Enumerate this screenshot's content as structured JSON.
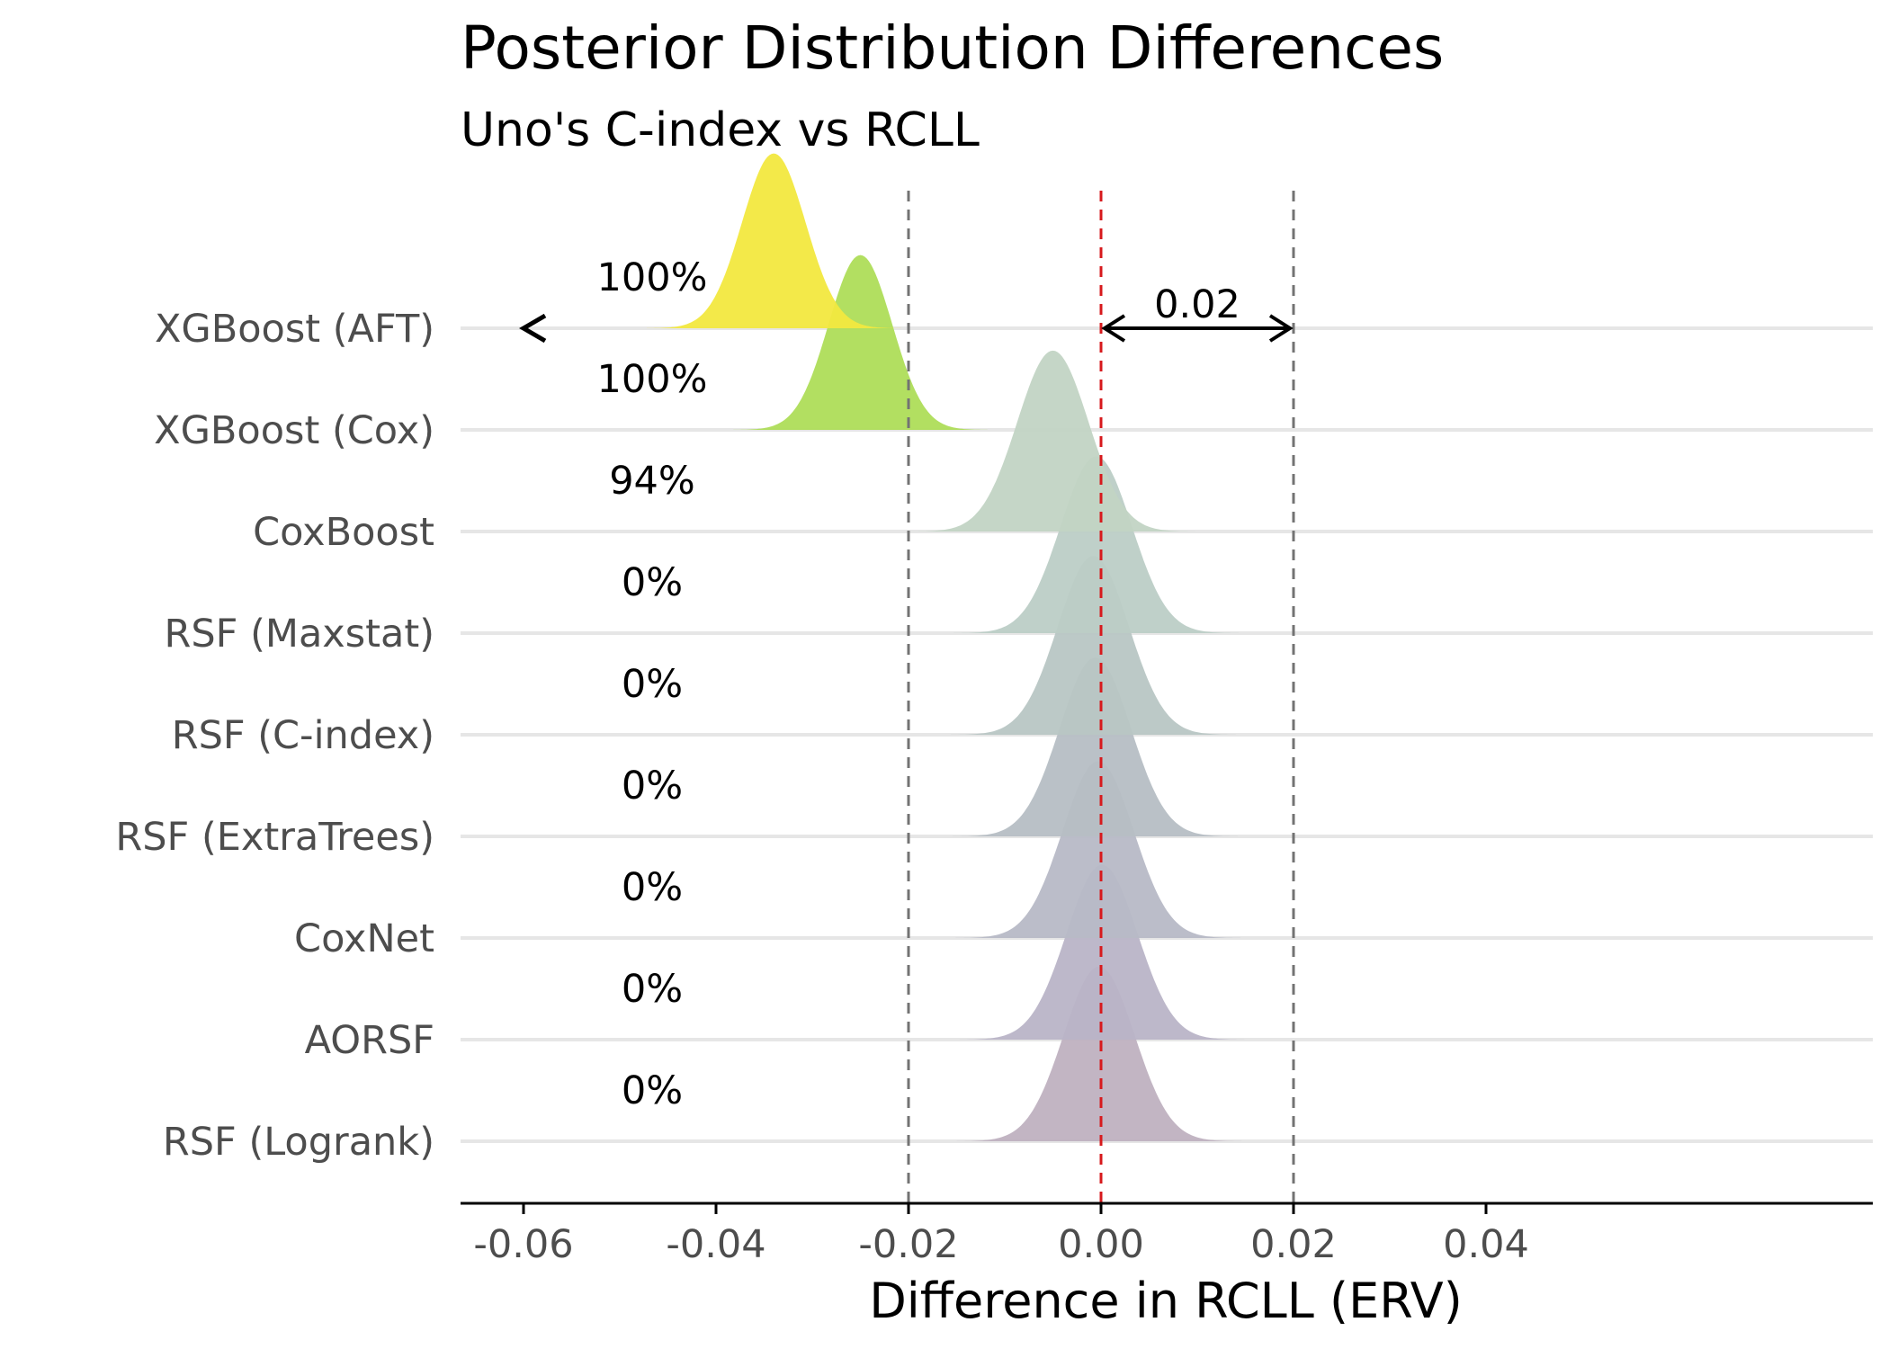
{
  "chart_data": {
    "type": "ridgeline",
    "title": "Posterior Distribution Differences",
    "subtitle": "Uno's C-index vs RCLL",
    "xlabel": "Difference in RCLL (ERV)",
    "xlim": [
      -0.065,
      0.045
    ],
    "xticks": [
      -0.06,
      -0.04,
      -0.02,
      0.0,
      0.02,
      0.04
    ],
    "xtick_labels": [
      "-0.06",
      "-0.04",
      "-0.02",
      "0.00",
      "0.02",
      "0.04"
    ],
    "rope": [
      -0.02,
      0.02
    ],
    "reference_line": 0.0,
    "rope_width_annotation": "0.02",
    "arrow_left_marker": "<",
    "categories": [
      {
        "name": "XGBoost (AFT)",
        "percent": "100%",
        "mode": -0.034,
        "sd": 0.0033,
        "peak": 1.72,
        "color": "#f2e83f"
      },
      {
        "name": "XGBoost (Cox)",
        "percent": "100%",
        "mode": -0.025,
        "sd": 0.0033,
        "peak": 1.72,
        "color": "#aedd58"
      },
      {
        "name": "CoxBoost",
        "percent": "94%",
        "mode": -0.005,
        "sd": 0.0037,
        "peak": 1.78,
        "color": "#c2d4c4"
      },
      {
        "name": "RSF (Maxstat)",
        "percent": "0%",
        "mode": -0.0005,
        "sd": 0.0037,
        "peak": 1.74,
        "color": "#bccdc6"
      },
      {
        "name": "RSF (C-index)",
        "percent": "0%",
        "mode": -0.0008,
        "sd": 0.0037,
        "peak": 1.76,
        "color": "#b8c6c4"
      },
      {
        "name": "RSF (ExtraTrees)",
        "percent": "0%",
        "mode": -0.0006,
        "sd": 0.0037,
        "peak": 1.76,
        "color": "#b6bec4"
      },
      {
        "name": "CoxNet",
        "percent": "0%",
        "mode": -0.0003,
        "sd": 0.0037,
        "peak": 1.74,
        "color": "#b7b9c6"
      },
      {
        "name": "AORSF",
        "percent": "0%",
        "mode": 0.0001,
        "sd": 0.0037,
        "peak": 1.72,
        "color": "#b9b4c7"
      },
      {
        "name": "RSF (Logrank)",
        "percent": "0%",
        "mode": -0.0002,
        "sd": 0.0037,
        "peak": 1.72,
        "color": "#bfb1c0"
      }
    ],
    "colors": {
      "reference": "#d7191c",
      "rope_lines": "#737373",
      "gridline": "#e6e6e6",
      "axis": "#000000"
    }
  }
}
